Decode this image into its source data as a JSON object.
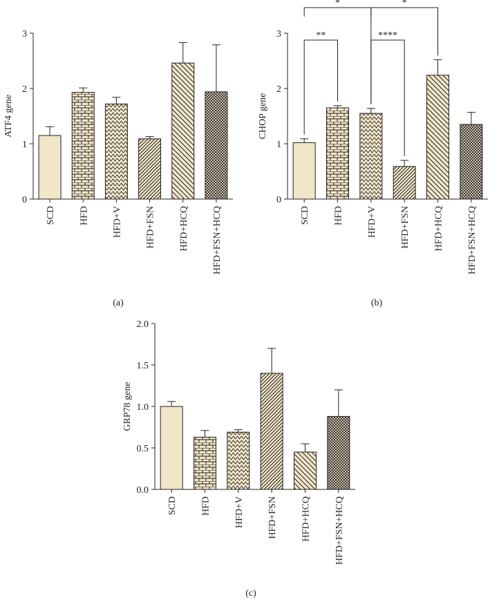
{
  "colors": {
    "bar_fill": "#f0e6c8",
    "stroke": "#231f20"
  },
  "chart_data": [
    {
      "id": "a",
      "type": "bar",
      "panel_label": "(a)",
      "ylabel": "ATF4 gene",
      "ylim": [
        0,
        3
      ],
      "yticks": [
        "0",
        "1",
        "2",
        "3"
      ],
      "categories": [
        "SCD",
        "HFD",
        "HFD+V",
        "HFD+FSN",
        "HFD+HCQ",
        "HFD+FSN+HCQ"
      ],
      "values": [
        1.15,
        1.93,
        1.72,
        1.09,
        2.46,
        1.94
      ],
      "errors": [
        0.16,
        0.08,
        0.12,
        0.04,
        0.37,
        0.85
      ],
      "patterns": [
        "solid",
        "brick",
        "wave",
        "diag-fine",
        "diag-wide",
        "grid"
      ],
      "significance": []
    },
    {
      "id": "b",
      "type": "bar",
      "panel_label": "(b)",
      "ylabel": "CHOP gene",
      "ylim": [
        0,
        3
      ],
      "yticks": [
        "0",
        "1",
        "2",
        "3"
      ],
      "categories": [
        "SCD",
        "HFD",
        "HFD+V",
        "HFD+FSN",
        "HFD+HCQ",
        "HFD+FSN+HCQ"
      ],
      "values": [
        1.02,
        1.65,
        1.55,
        0.59,
        2.24,
        1.35
      ],
      "errors": [
        0.07,
        0.04,
        0.09,
        0.11,
        0.28,
        0.22
      ],
      "patterns": [
        "solid",
        "brick",
        "wave",
        "diag-fine",
        "diag-wide",
        "grid"
      ],
      "significance": [
        {
          "from": 0,
          "to": 1,
          "label": "**",
          "level": 0
        },
        {
          "from": 2,
          "to": 3,
          "label": "****",
          "level": 0
        },
        {
          "from": 0,
          "to": 2,
          "label": "*",
          "level": 1
        },
        {
          "from": 2,
          "to": 4,
          "label": "*",
          "level": 1
        }
      ]
    },
    {
      "id": "c",
      "type": "bar",
      "panel_label": "(c)",
      "ylabel": "GRP78 gene",
      "ylim": [
        0,
        2
      ],
      "yticks": [
        "0.0",
        "0.5",
        "1.0",
        "1.5",
        "2.0"
      ],
      "categories": [
        "SCD",
        "HFD",
        "HFD+V",
        "HFD+FSN",
        "HFD+HCQ",
        "HFD+FSN+HCQ"
      ],
      "values": [
        1.0,
        0.63,
        0.69,
        1.4,
        0.45,
        0.88
      ],
      "errors": [
        0.06,
        0.08,
        0.03,
        0.3,
        0.1,
        0.32
      ],
      "patterns": [
        "solid",
        "brick",
        "wave",
        "diag-fine",
        "diag-wide",
        "grid"
      ],
      "significance": []
    }
  ]
}
